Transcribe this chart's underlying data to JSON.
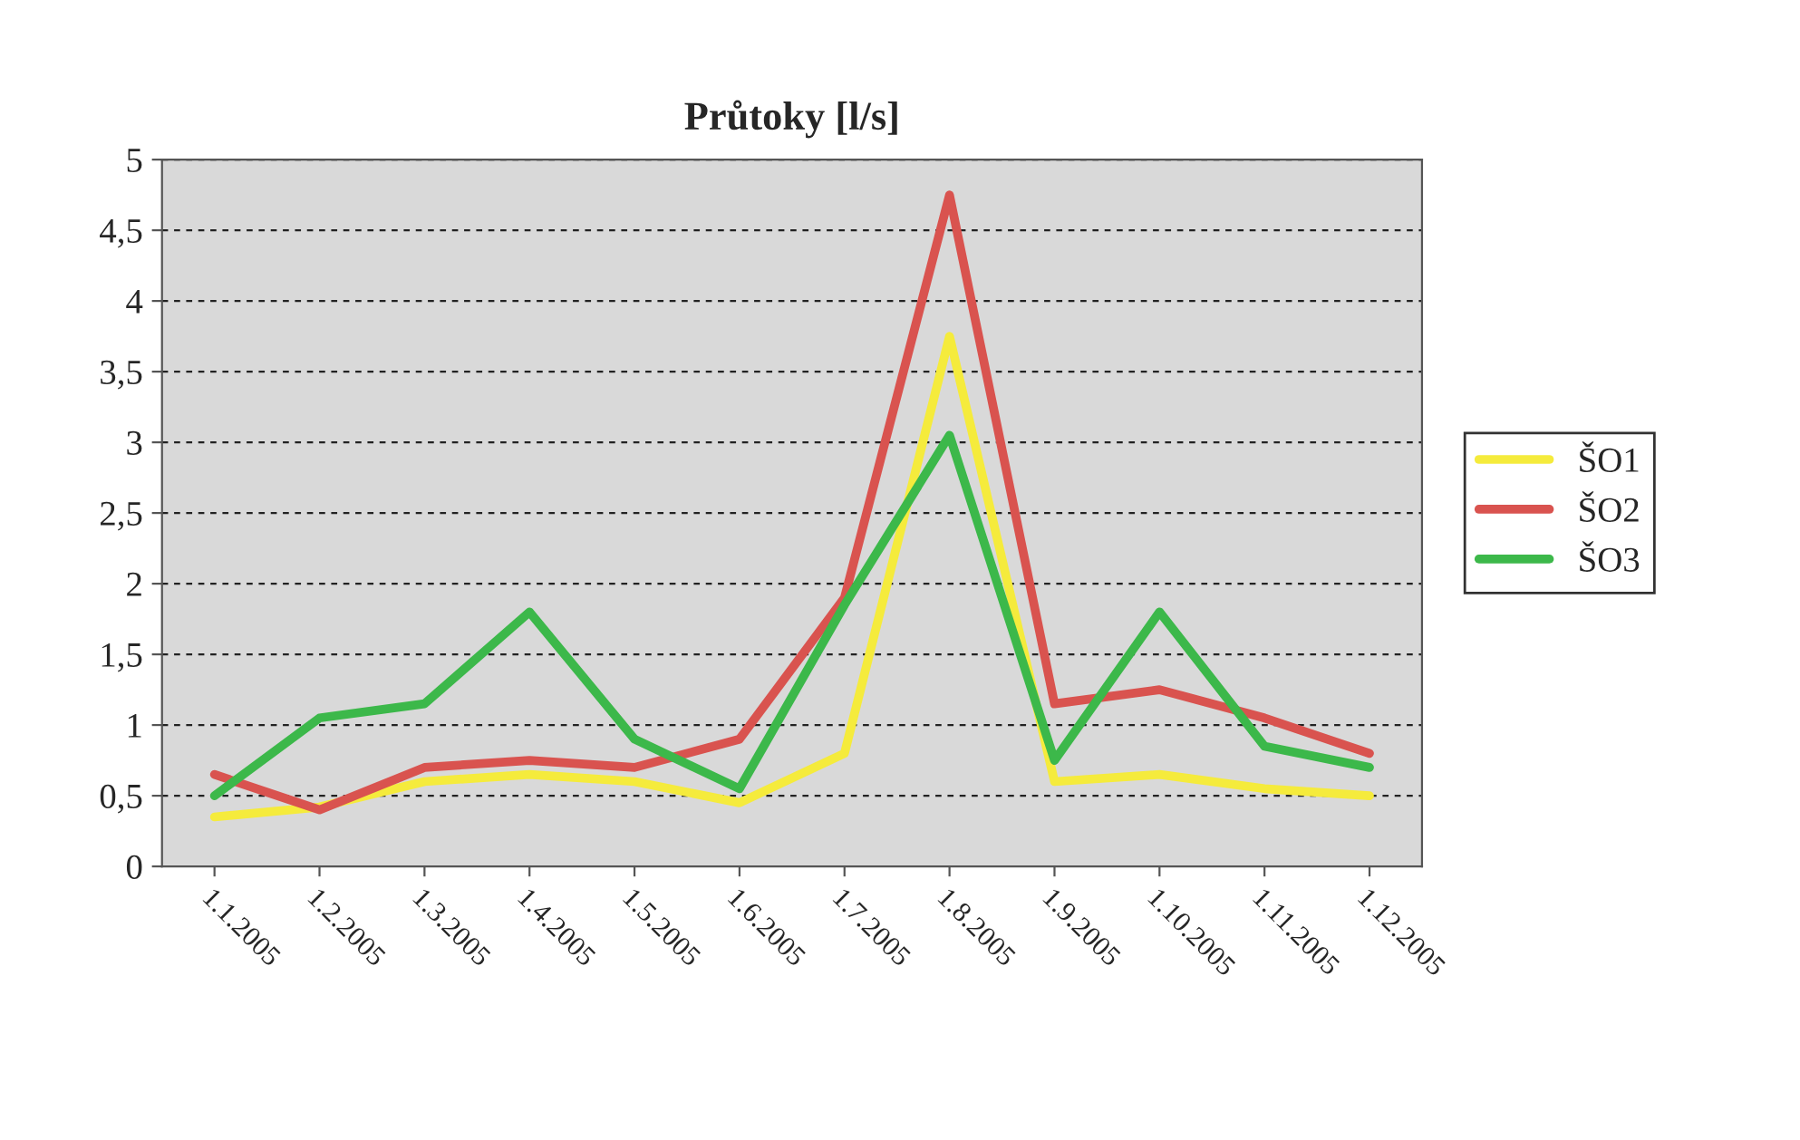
{
  "chart_data": {
    "type": "line",
    "title": "Průtoky [l/s]",
    "categories": [
      "1.1.2005",
      "1.2.2005",
      "1.3.2005",
      "1.4.2005",
      "1.5.2005",
      "1.6.2005",
      "1.7.2005",
      "1.8.2005",
      "1.9.2005",
      "1.10.2005",
      "1.11.2005",
      "1.12.2005"
    ],
    "series": [
      {
        "name": "ŠO1",
        "color": "#f5eb3c",
        "values": [
          0.35,
          0.42,
          0.6,
          0.65,
          0.6,
          0.45,
          0.8,
          3.75,
          0.6,
          0.65,
          0.55,
          0.5
        ]
      },
      {
        "name": "ŠO2",
        "color": "#d9534f",
        "values": [
          0.65,
          0.4,
          0.7,
          0.75,
          0.7,
          0.9,
          1.9,
          4.75,
          1.15,
          1.25,
          1.05,
          0.8
        ]
      },
      {
        "name": "ŠO3",
        "color": "#3cb84a",
        "values": [
          0.5,
          1.05,
          1.15,
          1.8,
          0.9,
          0.55,
          1.85,
          3.05,
          0.75,
          1.8,
          0.85,
          0.7
        ]
      }
    ],
    "ylim": [
      0,
      5
    ],
    "yticks": [
      0,
      {
        "value": 0.5,
        "label": "0,5"
      },
      1,
      {
        "value": 1.5,
        "label": "1,5"
      },
      2,
      {
        "value": 2.5,
        "label": "2,5"
      },
      3,
      {
        "value": 3.5,
        "label": "3,5"
      },
      4,
      {
        "value": 4.5,
        "label": "4,5"
      },
      5
    ],
    "grid": "y",
    "legend": "right",
    "marker": "none",
    "line_style": "solid"
  }
}
